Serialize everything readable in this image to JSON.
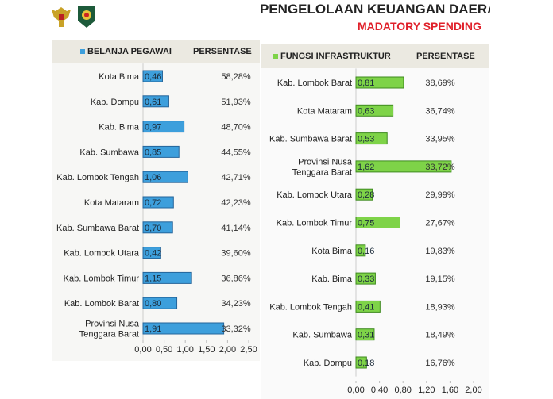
{
  "header": {
    "title": "PENGELOLAAN KEUANGAN DAERAH",
    "subtitle": "MADATORY SPENDING"
  },
  "colors": {
    "blue": "#3d9fdc",
    "green": "#7ed348",
    "red": "#e0202a"
  },
  "chart_data": [
    {
      "type": "bar",
      "orientation": "horizontal",
      "legend": "BELANJA PEGAWAI",
      "pct_header": "PERSENTASE",
      "categories": [
        "Kota Bima",
        "Kab. Dompu",
        "Kab. Bima",
        "Kab. Sumbawa",
        "Kab. Lombok Tengah",
        "Kota Mataram",
        "Kab. Sumbawa Barat",
        "Kab. Lombok Utara",
        "Kab. Lombok Timur",
        "Kab. Lombok Barat",
        "Provinsi Nusa|Tenggara Barat"
      ],
      "values": [
        0.46,
        0.61,
        0.97,
        0.85,
        1.06,
        0.72,
        0.7,
        0.42,
        1.15,
        0.8,
        1.91
      ],
      "value_labels": [
        "0,46",
        "0,61",
        "0,97",
        "0,85",
        "1,06",
        "0,72",
        "0,70",
        "0,42",
        "1,15",
        "0,80",
        "1,91"
      ],
      "percentages": [
        "58,28%",
        "51,93%",
        "48,70%",
        "44,55%",
        "42,71%",
        "42,23%",
        "41,14%",
        "39,60%",
        "36,86%",
        "34,23%",
        "33,32%"
      ],
      "xlim": [
        0,
        2.5
      ],
      "ticks": [
        "0,00",
        "0,50",
        "1,00",
        "1,50",
        "2,00",
        "2,50"
      ]
    },
    {
      "type": "bar",
      "orientation": "horizontal",
      "legend": "FUNGSI INFRASTRUKTUR",
      "pct_header": "PERSENTASE",
      "categories": [
        "Kab. Lombok Barat",
        "Kota Mataram",
        "Kab. Sumbawa Barat",
        "Provinsi Nusa|Tenggara Barat",
        "Kab. Lombok Utara",
        "Kab. Lombok Timur",
        "Kota Bima",
        "Kab. Bima",
        "Kab. Lombok Tengah",
        "Kab. Sumbawa",
        "Kab. Dompu"
      ],
      "values": [
        0.81,
        0.63,
        0.53,
        1.62,
        0.28,
        0.75,
        0.16,
        0.33,
        0.41,
        0.31,
        0.18
      ],
      "value_labels": [
        "0,81",
        "0,63",
        "0,53",
        "1,62",
        "0,28",
        "0,75",
        "0,16",
        "0,33",
        "0,41",
        "0,31",
        "0,18"
      ],
      "percentages": [
        "38,69%",
        "36,74%",
        "33,95%",
        "33,72%",
        "29,99%",
        "27,67%",
        "19,83%",
        "19,15%",
        "18,93%",
        "18,49%",
        "16,76%"
      ],
      "xlim": [
        0,
        2.0
      ],
      "ticks": [
        "0,00",
        "0,40",
        "0,80",
        "1,20",
        "1,60",
        "2,00"
      ]
    }
  ]
}
